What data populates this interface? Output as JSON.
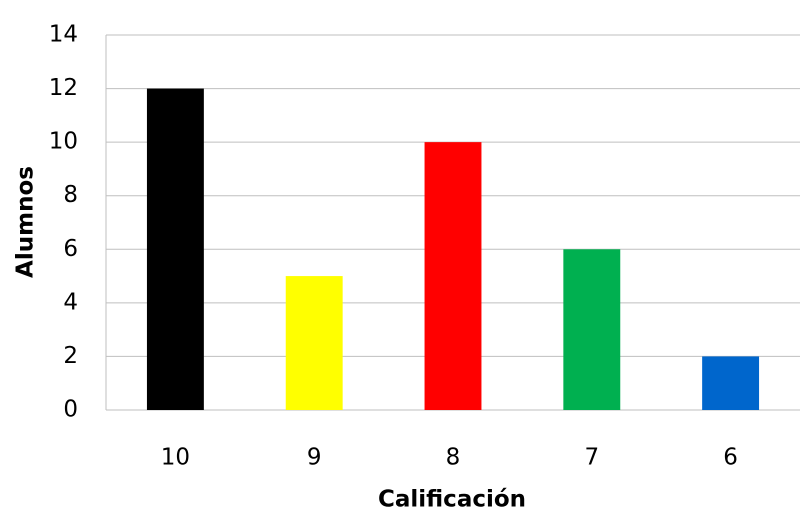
{
  "chart_data": {
    "type": "bar",
    "categories": [
      "10",
      "9",
      "8",
      "7",
      "6"
    ],
    "values": [
      12,
      5,
      10,
      6,
      2
    ],
    "colors": [
      "#000000",
      "#ffff00",
      "#ff0000",
      "#00b050",
      "#0066cc"
    ],
    "x_label": "Calificación",
    "y_label": "Alumnos",
    "ylim": [
      0,
      14
    ],
    "yticks": [
      0,
      2,
      4,
      6,
      8,
      10,
      12,
      14
    ],
    "grid": true
  }
}
